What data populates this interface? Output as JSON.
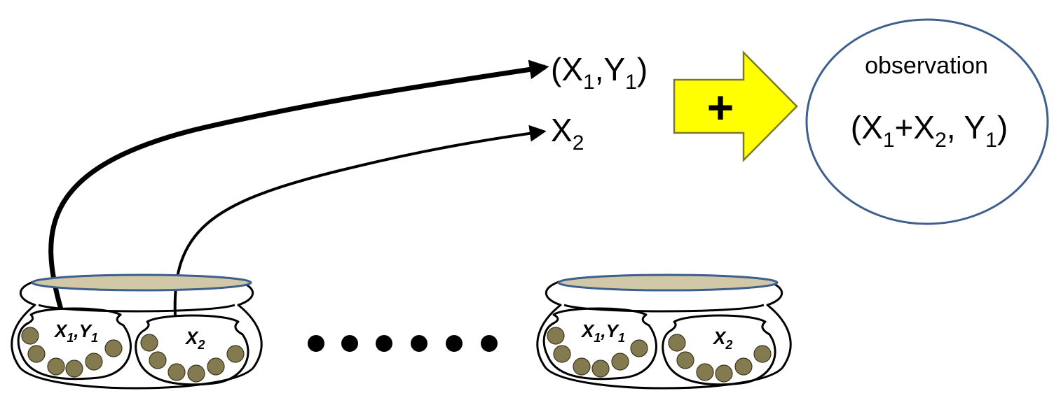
{
  "diagram": {
    "output_pair": {
      "base_x": "X",
      "sub_1": "1",
      "sep": ",",
      "base_y": "Y",
      "sub_2": "1",
      "open": "(",
      "close": ")"
    },
    "output_single": {
      "base": "X",
      "sub": "2"
    },
    "operator": "+",
    "observation": {
      "title": "observation",
      "formula": {
        "open": "(",
        "x1": "X",
        "s1": "1",
        "plus": "+",
        "x2": "X",
        "s2": "2",
        "sep": ", ",
        "y1": "Y",
        "s3": "1",
        "close": ")"
      }
    },
    "pots": [
      {
        "compartments": [
          {
            "label_a": "X",
            "sub_a": "1",
            "sep": ",",
            "label_b": "Y",
            "sub_b": "1"
          },
          {
            "label_a": "X",
            "sub_a": "2"
          }
        ]
      },
      {
        "compartments": [
          {
            "label_a": "X",
            "sub_a": "1",
            "sep": ",",
            "label_b": "Y",
            "sub_b": "1"
          },
          {
            "label_a": "X",
            "sub_a": "2"
          }
        ]
      }
    ],
    "ellipsis_dots": 6,
    "colors": {
      "arrow_fill": "#ffff00",
      "arrow_stroke": "#7a7a2a",
      "circle_stroke": "#3c5f8f",
      "rim_fill": "#d2c7a6",
      "rim_stroke": "#3c5f8f",
      "ball_fill": "#847a4f"
    }
  }
}
